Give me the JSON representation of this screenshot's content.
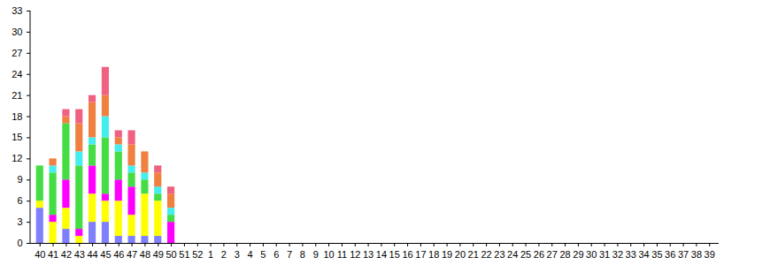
{
  "chart_data": {
    "type": "bar",
    "stacked": true,
    "categories": [
      "40",
      "41",
      "42",
      "43",
      "44",
      "45",
      "46",
      "47",
      "48",
      "49",
      "50",
      "51",
      "52",
      "1",
      "2",
      "3",
      "4",
      "5",
      "6",
      "7",
      "8",
      "9",
      "10",
      "11",
      "12",
      "13",
      "14",
      "15",
      "16",
      "17",
      "18",
      "19",
      "20",
      "21",
      "22",
      "23",
      "24",
      "25",
      "26",
      "27",
      "28",
      "29",
      "30",
      "31",
      "32",
      "33",
      "34",
      "35",
      "36",
      "37",
      "38",
      "39"
    ],
    "series": [
      {
        "color": "#8080ff",
        "values": [
          5,
          0,
          2,
          0,
          3,
          3,
          1,
          1,
          1,
          1,
          0,
          0,
          0,
          0,
          0,
          0,
          0,
          0,
          0,
          0,
          0,
          0,
          0,
          0,
          0,
          0,
          0,
          0,
          0,
          0,
          0,
          0,
          0,
          0,
          0,
          0,
          0,
          0,
          0,
          0,
          0,
          0,
          0,
          0,
          0,
          0,
          0,
          0,
          0,
          0,
          0,
          0
        ]
      },
      {
        "color": "#ffff00",
        "values": [
          1,
          3,
          3,
          1,
          4,
          3,
          5,
          3,
          6,
          5,
          0,
          0,
          0,
          0,
          0,
          0,
          0,
          0,
          0,
          0,
          0,
          0,
          0,
          0,
          0,
          0,
          0,
          0,
          0,
          0,
          0,
          0,
          0,
          0,
          0,
          0,
          0,
          0,
          0,
          0,
          0,
          0,
          0,
          0,
          0,
          0,
          0,
          0,
          0,
          0,
          0,
          0
        ]
      },
      {
        "color": "#ff00ff",
        "values": [
          0,
          1,
          4,
          1,
          4,
          1,
          3,
          4,
          0,
          0,
          3,
          0,
          0,
          0,
          0,
          0,
          0,
          0,
          0,
          0,
          0,
          0,
          0,
          0,
          0,
          0,
          0,
          0,
          0,
          0,
          0,
          0,
          0,
          0,
          0,
          0,
          0,
          0,
          0,
          0,
          0,
          0,
          0,
          0,
          0,
          0,
          0,
          0,
          0,
          0,
          0,
          0
        ]
      },
      {
        "color": "#44dd44",
        "values": [
          5,
          6,
          8,
          9,
          3,
          8,
          4,
          2,
          2,
          1,
          1,
          0,
          0,
          0,
          0,
          0,
          0,
          0,
          0,
          0,
          0,
          0,
          0,
          0,
          0,
          0,
          0,
          0,
          0,
          0,
          0,
          0,
          0,
          0,
          0,
          0,
          0,
          0,
          0,
          0,
          0,
          0,
          0,
          0,
          0,
          0,
          0,
          0,
          0,
          0,
          0,
          0
        ]
      },
      {
        "color": "#44eeee",
        "values": [
          0,
          1,
          0,
          2,
          1,
          3,
          1,
          1,
          1,
          1,
          1,
          0,
          0,
          0,
          0,
          0,
          0,
          0,
          0,
          0,
          0,
          0,
          0,
          0,
          0,
          0,
          0,
          0,
          0,
          0,
          0,
          0,
          0,
          0,
          0,
          0,
          0,
          0,
          0,
          0,
          0,
          0,
          0,
          0,
          0,
          0,
          0,
          0,
          0,
          0,
          0,
          0
        ]
      },
      {
        "color": "#f08040",
        "values": [
          0,
          1,
          1,
          4,
          5,
          3,
          1,
          3,
          3,
          2,
          2,
          0,
          0,
          0,
          0,
          0,
          0,
          0,
          0,
          0,
          0,
          0,
          0,
          0,
          0,
          0,
          0,
          0,
          0,
          0,
          0,
          0,
          0,
          0,
          0,
          0,
          0,
          0,
          0,
          0,
          0,
          0,
          0,
          0,
          0,
          0,
          0,
          0,
          0,
          0,
          0,
          0
        ]
      },
      {
        "color": "#f06080",
        "values": [
          0,
          0,
          1,
          2,
          1,
          4,
          1,
          2,
          0,
          1,
          1,
          0,
          0,
          0,
          0,
          0,
          0,
          0,
          0,
          0,
          0,
          0,
          0,
          0,
          0,
          0,
          0,
          0,
          0,
          0,
          0,
          0,
          0,
          0,
          0,
          0,
          0,
          0,
          0,
          0,
          0,
          0,
          0,
          0,
          0,
          0,
          0,
          0,
          0,
          0,
          0,
          0
        ]
      }
    ],
    "ylim": [
      0,
      33
    ],
    "yticks": [
      0,
      3,
      6,
      9,
      12,
      15,
      18,
      21,
      24,
      27,
      30,
      33
    ],
    "grid": false
  }
}
